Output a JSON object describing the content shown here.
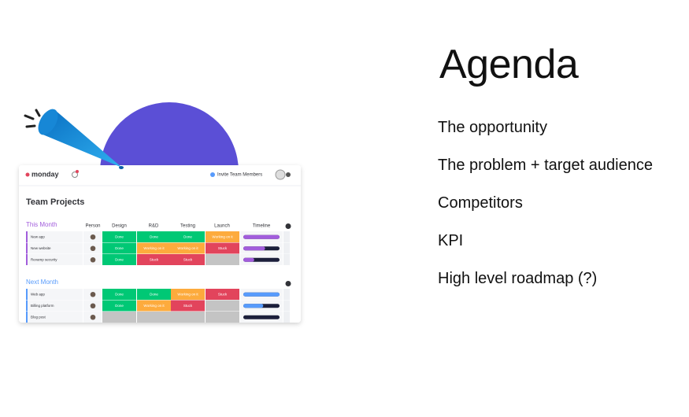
{
  "title": "Agenda",
  "items": [
    "The opportunity",
    "The problem + target audience",
    "Competitors",
    "KPI",
    "High level roadmap (?)"
  ],
  "app": {
    "logo": "monday",
    "invite": "Invite Team Members",
    "board_title": "Team Projects",
    "columns": [
      "Person",
      "Design",
      "R&D",
      "Testing",
      "Launch",
      "Timeline"
    ],
    "groups": [
      {
        "name": "This Month",
        "color": "#a25ddc",
        "rows": [
          {
            "name": "New app",
            "timeline": 100,
            "cells": [
              {
                "label": "Done",
                "color": "#00c875"
              },
              {
                "label": "Done",
                "color": "#00c875"
              },
              {
                "label": "Done",
                "color": "#00c875"
              },
              {
                "label": "Working on it",
                "color": "#fdab3d"
              }
            ]
          },
          {
            "name": "New website",
            "timeline": 60,
            "cells": [
              {
                "label": "Done",
                "color": "#00c875"
              },
              {
                "label": "Working on it",
                "color": "#fdab3d"
              },
              {
                "label": "Working on it",
                "color": "#fdab3d"
              },
              {
                "label": "Stuck",
                "color": "#e2445c"
              }
            ]
          },
          {
            "name": "Revamp security",
            "timeline": 30,
            "cells": [
              {
                "label": "Done",
                "color": "#00c875"
              },
              {
                "label": "Stuck",
                "color": "#e2445c"
              },
              {
                "label": "Stuck",
                "color": "#e2445c"
              },
              {
                "label": null,
                "color": "#c4c4c4"
              }
            ]
          }
        ]
      },
      {
        "name": "Next Month",
        "color": "#579bfc",
        "rows": [
          {
            "name": "Web app",
            "timeline": 100,
            "cells": [
              {
                "label": "Done",
                "color": "#00c875"
              },
              {
                "label": "Done",
                "color": "#00c875"
              },
              {
                "label": "Working on it",
                "color": "#fdab3d"
              },
              {
                "label": "Stuck",
                "color": "#e2445c"
              }
            ]
          },
          {
            "name": "Billing platform",
            "timeline": 55,
            "cells": [
              {
                "label": "Done",
                "color": "#00c875"
              },
              {
                "label": "Working on it",
                "color": "#fdab3d"
              },
              {
                "label": "Stuck",
                "color": "#e2445c"
              },
              {
                "label": null,
                "color": "#c4c4c4"
              }
            ]
          },
          {
            "name": "Blog post",
            "timeline": 0,
            "cells": [
              {
                "label": null,
                "color": "#c4c4c4"
              },
              {
                "label": null,
                "color": "#c4c4c4"
              },
              {
                "label": null,
                "color": "#c4c4c4"
              },
              {
                "label": null,
                "color": "#c4c4c4"
              }
            ]
          }
        ]
      }
    ]
  }
}
